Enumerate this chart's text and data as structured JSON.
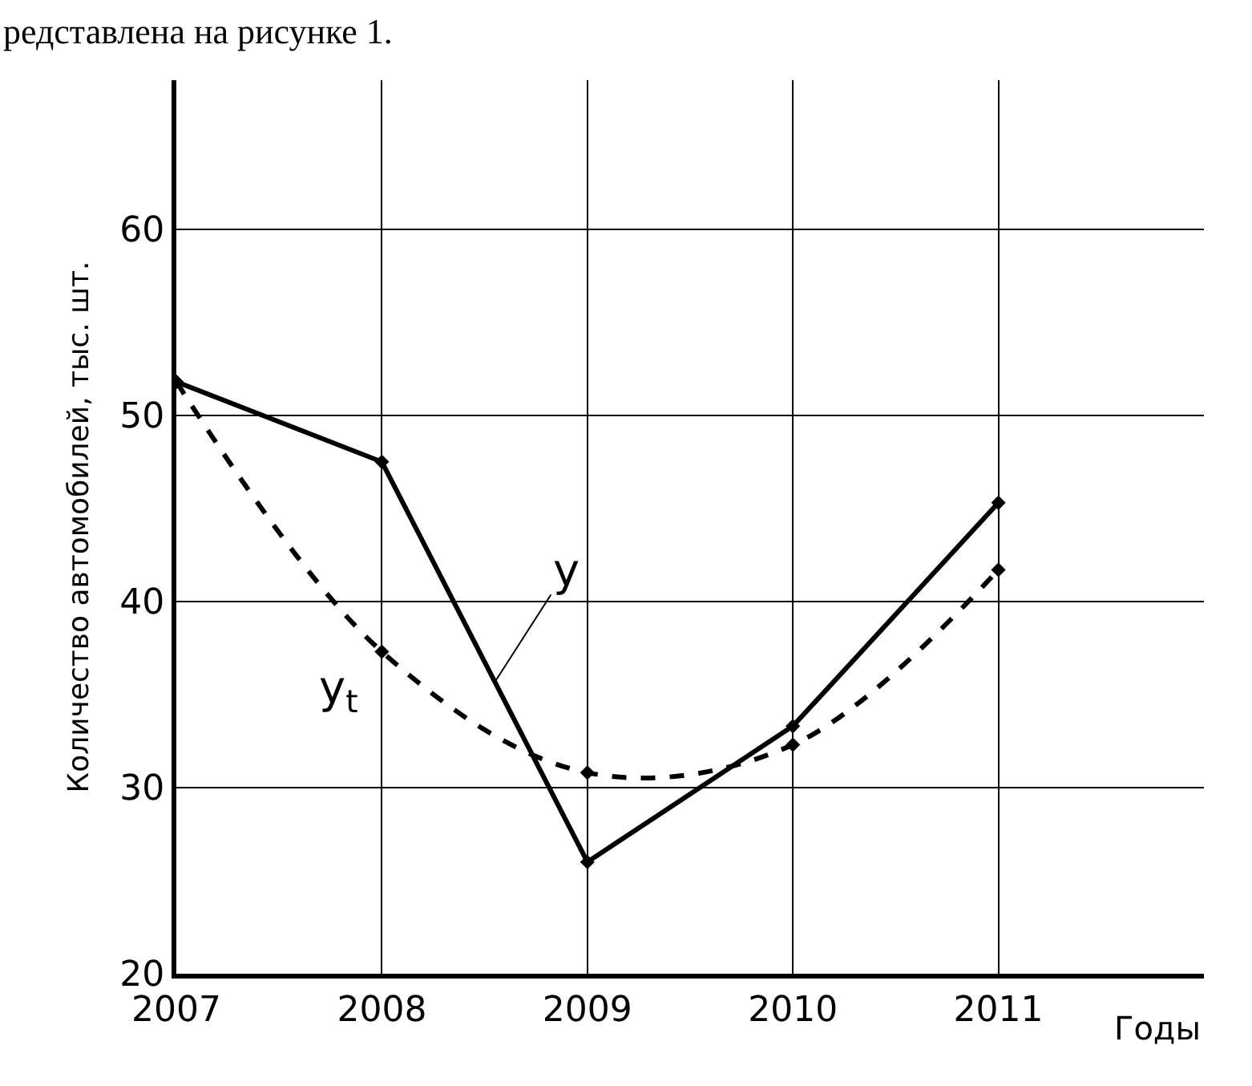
{
  "chart_data": {
    "type": "line",
    "xlabel": "Годы",
    "ylabel": "Количество автомобилей, тыс. шт.",
    "annotations": [
      "редставлена на рисунке 1."
    ],
    "x": [
      2007,
      2008,
      2009,
      2010,
      2011
    ],
    "series": [
      {
        "name": "y",
        "color": "#000000",
        "values": [
          51.8,
          47.5,
          26.0,
          33.3,
          45.3
        ],
        "line_style": "solid"
      },
      {
        "name": "y$_{t}$",
        "color": "#000000",
        "values": [
          51.8,
          37.3,
          30.8,
          32.3,
          41.7
        ],
        "line_style": "dashed"
      }
    ],
    "xlim": [
      2007,
      2012
    ],
    "ylim": [
      20,
      68
    ],
    "xticks": [
      2007,
      2008,
      2009,
      2010,
      2011
    ],
    "yticks": [
      20,
      30,
      40,
      50,
      60
    ],
    "grid": true,
    "legend": false,
    "marker": "diamond"
  }
}
